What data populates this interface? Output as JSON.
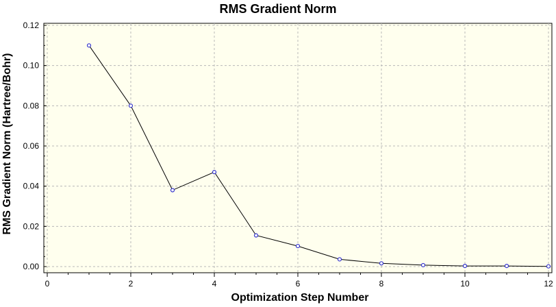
{
  "chart_data": {
    "type": "line",
    "title": "RMS Gradient Norm",
    "xlabel": "Optimization Step Number",
    "ylabel": "RMS Gradient Norm (Hartree/Bohr)",
    "xlim": [
      0,
      12
    ],
    "ylim": [
      0,
      0.12
    ],
    "x_ticks": [
      "0",
      "2",
      "4",
      "6",
      "8",
      "10",
      "12"
    ],
    "y_ticks": [
      "0.00",
      "0.02",
      "0.04",
      "0.06",
      "0.08",
      "0.10",
      "0.12"
    ],
    "grid": true,
    "legend": "none",
    "colors": {
      "plot_background": "#ffffee",
      "grid": "#b8b8b8",
      "line": "#000000",
      "marker": "#3333cc"
    },
    "series": [
      {
        "x": [
          1,
          2,
          3,
          4,
          5,
          6,
          7,
          8,
          9,
          10,
          11,
          12
        ],
        "values": [
          0.11,
          0.08,
          0.038,
          0.047,
          0.0155,
          0.0102,
          0.0036,
          0.0016,
          0.0007,
          0.0003,
          0.0003,
          0.0001
        ]
      }
    ]
  }
}
